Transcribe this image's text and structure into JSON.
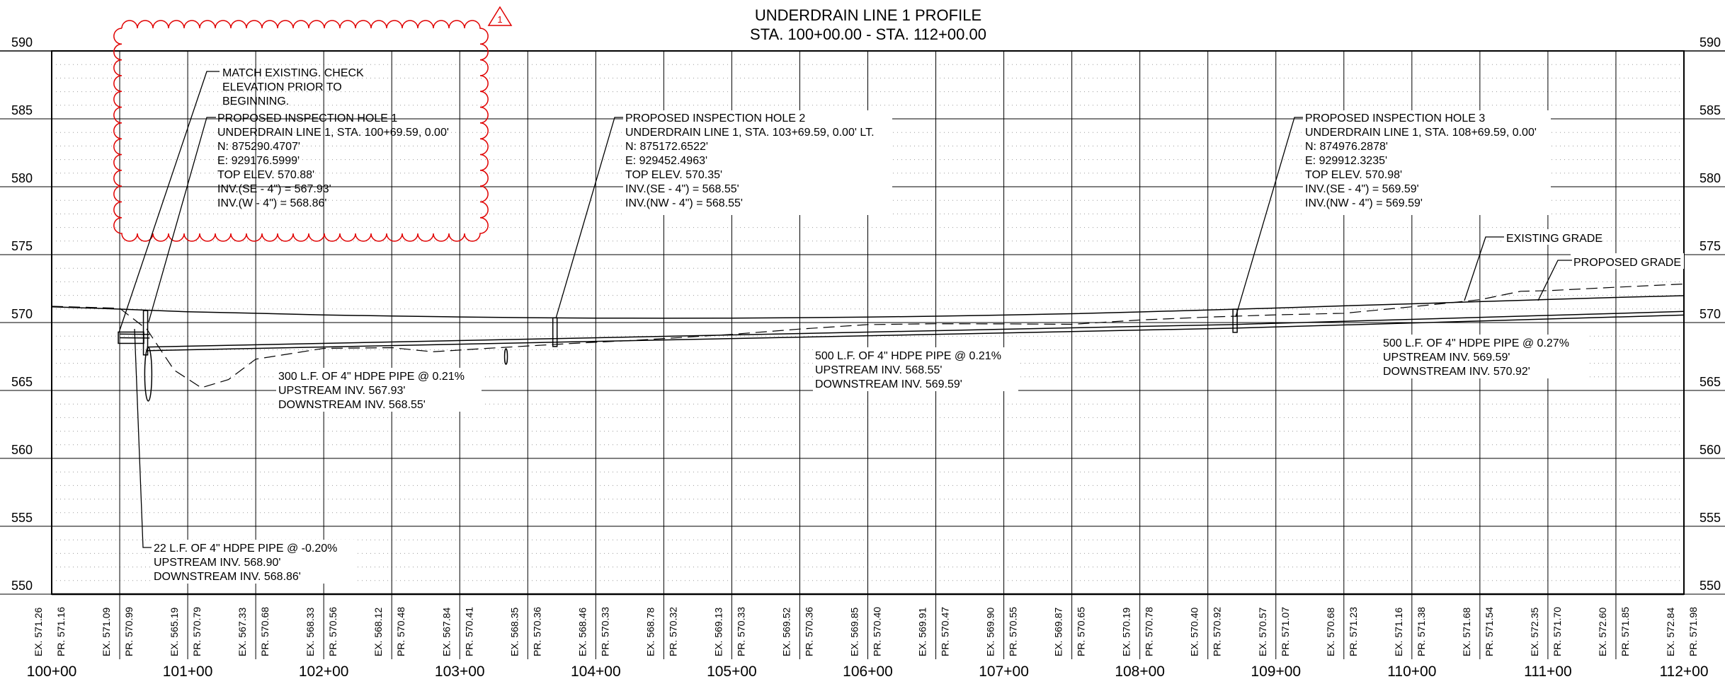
{
  "title": {
    "line1": "UNDERDRAIN LINE 1 PROFILE",
    "line2": "STA. 100+00.00 - STA. 112+00.00"
  },
  "revision_mark": "1",
  "elevation_labels": [
    "590",
    "585",
    "580",
    "575",
    "570",
    "565",
    "560",
    "555",
    "550"
  ],
  "station_labels": [
    "100+00",
    "101+00",
    "102+00",
    "103+00",
    "104+00",
    "105+00",
    "106+00",
    "107+00",
    "108+00",
    "109+00",
    "110+00",
    "111+00",
    "112+00"
  ],
  "column_labels": [
    {
      "ex": "EX. 571.26",
      "pr": "PR. 571.16"
    },
    {
      "ex": "EX. 571.09",
      "pr": "PR. 570.99"
    },
    {
      "ex": "EX. 565.19",
      "pr": "PR. 570.79"
    },
    {
      "ex": "EX. 567.33",
      "pr": "PR. 570.68"
    },
    {
      "ex": "EX. 568.33",
      "pr": "PR. 570.56"
    },
    {
      "ex": "EX. 568.12",
      "pr": "PR. 570.48"
    },
    {
      "ex": "EX. 567.84",
      "pr": "PR. 570.41"
    },
    {
      "ex": "EX. 568.35",
      "pr": "PR. 570.36"
    },
    {
      "ex": "EX. 568.46",
      "pr": "PR. 570.33"
    },
    {
      "ex": "EX. 568.78",
      "pr": "PR. 570.32"
    },
    {
      "ex": "EX. 569.13",
      "pr": "PR. 570.33"
    },
    {
      "ex": "EX. 569.52",
      "pr": "PR. 570.36"
    },
    {
      "ex": "EX. 569.85",
      "pr": "PR. 570.40"
    },
    {
      "ex": "EX. 569.91",
      "pr": "PR. 570.47"
    },
    {
      "ex": "EX. 569.90",
      "pr": "PR. 570.55"
    },
    {
      "ex": "EX. 569.87",
      "pr": "PR. 570.65"
    },
    {
      "ex": "EX. 570.19",
      "pr": "PR. 570.78"
    },
    {
      "ex": "EX. 570.40",
      "pr": "PR. 570.92"
    },
    {
      "ex": "EX. 570.57",
      "pr": "PR. 571.07"
    },
    {
      "ex": "EX. 570.68",
      "pr": "PR. 571.23"
    },
    {
      "ex": "EX. 571.16",
      "pr": "PR. 571.38"
    },
    {
      "ex": "EX. 571.68",
      "pr": "PR. 571.54"
    },
    {
      "ex": "EX. 572.35",
      "pr": "PR. 571.70"
    },
    {
      "ex": "EX. 572.60",
      "pr": "PR. 571.85"
    },
    {
      "ex": "EX. 572.84",
      "pr": "PR. 571.98"
    }
  ],
  "notes": {
    "match_existing": [
      "MATCH EXISTING. CHECK",
      "ELEVATION PRIOR TO",
      "BEGINNING."
    ],
    "hole1": [
      "PROPOSED INSPECTION HOLE 1",
      "UNDERDRAIN LINE 1, STA. 100+69.59, 0.00'",
      "N: 875290.4707'",
      "E: 929176.5999'",
      "TOP ELEV. 570.88'",
      "INV.(SE - 4\") = 567.93'",
      "INV.(W - 4\") = 568.86'"
    ],
    "hole2": [
      "PROPOSED INSPECTION HOLE 2",
      "UNDERDRAIN LINE 1, STA. 103+69.59, 0.00' LT.",
      "N: 875172.6522'",
      "E: 929452.4963'",
      "TOP ELEV. 570.35'",
      "INV.(SE - 4\") = 568.55'",
      "INV.(NW - 4\") = 568.55'"
    ],
    "hole3": [
      "PROPOSED INSPECTION HOLE 3",
      "UNDERDRAIN LINE 1, STA. 108+69.59, 0.00'",
      "N: 874976.2878'",
      "E: 929912.3235'",
      "TOP ELEV. 570.98'",
      "INV.(SE - 4\") = 569.59'",
      "INV.(NW - 4\") = 569.59'"
    ],
    "existing_grade": "EXISTING GRADE",
    "proposed_grade": "PROPOSED GRADE",
    "pipe300": [
      "300 L.F. OF 4\" HDPE PIPE @ 0.21%",
      "UPSTREAM INV. 567.93'",
      "DOWNSTREAM INV. 568.55'"
    ],
    "pipe500a": [
      "500 L.F. OF 4\" HDPE PIPE @ 0.21%",
      "UPSTREAM INV. 568.55'",
      "DOWNSTREAM INV. 569.59'"
    ],
    "pipe500b": [
      "500 L.F. OF 4\" HDPE PIPE @ 0.27%",
      "UPSTREAM INV. 569.59'",
      "DOWNSTREAM INV. 570.92'"
    ],
    "pipe22": [
      "22 L.F. OF 4\" HDPE PIPE @ -0.20%",
      "UPSTREAM INV. 568.90'",
      "DOWNSTREAM INV. 568.86'"
    ]
  }
}
